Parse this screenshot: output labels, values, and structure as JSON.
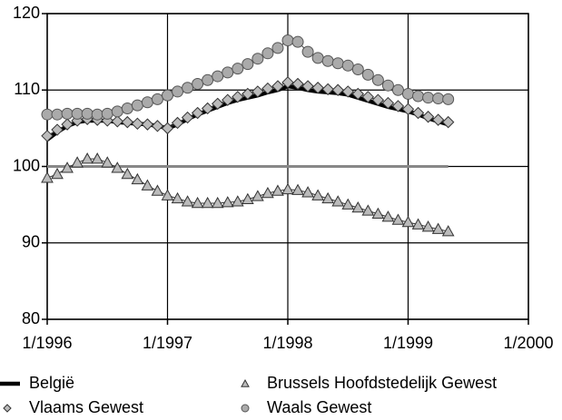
{
  "chart_data": {
    "type": "line",
    "x": [
      "1996-01",
      "1996-02",
      "1996-03",
      "1996-04",
      "1996-05",
      "1996-06",
      "1996-07",
      "1996-08",
      "1996-09",
      "1996-10",
      "1996-11",
      "1996-12",
      "1997-01",
      "1997-02",
      "1997-03",
      "1997-04",
      "1997-05",
      "1997-06",
      "1997-07",
      "1997-08",
      "1997-09",
      "1997-10",
      "1997-11",
      "1997-12",
      "1998-01",
      "1998-02",
      "1998-03",
      "1998-04",
      "1998-05",
      "1998-06",
      "1998-07",
      "1998-08",
      "1998-09",
      "1998-10",
      "1998-11",
      "1998-12",
      "1999-01",
      "1999-02",
      "1999-03",
      "1999-04",
      "1999-05"
    ],
    "xlim": [
      "1996-01",
      "2000-01"
    ],
    "xticks": [
      {
        "value": "1996-01",
        "label": "1/1996"
      },
      {
        "value": "1997-01",
        "label": "1/1997"
      },
      {
        "value": "1998-01",
        "label": "1/1998"
      },
      {
        "value": "1999-01",
        "label": "1/1999"
      },
      {
        "value": "2000-01",
        "label": "1/2000"
      }
    ],
    "ylim": [
      80,
      120
    ],
    "yticks": [
      80,
      90,
      100,
      110,
      120
    ],
    "grid": true,
    "legend": "bottom",
    "reference_lines": [
      {
        "value": 100,
        "x": [
          "1996-01",
          "1999-05"
        ],
        "color": "#888888"
      }
    ],
    "series": [
      {
        "name": "België",
        "color": "#000000",
        "marker": "none",
        "values": [
          103.5,
          104.5,
          105.3,
          105.8,
          106,
          106,
          106,
          105.8,
          105.7,
          105.6,
          105.5,
          105.3,
          105,
          105.5,
          106.2,
          106.8,
          107.3,
          107.8,
          108.3,
          108.7,
          109,
          109.3,
          109.7,
          110,
          110.5,
          110.3,
          110,
          109.8,
          109.7,
          109.6,
          109.4,
          109,
          108.6,
          108.2,
          107.8,
          107.5,
          107.2,
          106.8,
          106.3,
          105.9,
          105.5
        ]
      },
      {
        "name": "Brussels Hoofdstedelijk Gewest",
        "color": "#bbbbbb",
        "marker": "triangle",
        "values": [
          98.5,
          99,
          99.8,
          100.5,
          101,
          101,
          100.5,
          99.8,
          99,
          98.3,
          97.5,
          96.8,
          96.2,
          95.8,
          95.4,
          95.2,
          95.2,
          95.2,
          95.3,
          95.4,
          95.7,
          96.1,
          96.5,
          96.8,
          97,
          96.9,
          96.6,
          96.2,
          95.8,
          95.4,
          95,
          94.6,
          94.2,
          93.8,
          93.4,
          93,
          92.7,
          92.4,
          92.1,
          91.8,
          91.5
        ]
      },
      {
        "name": "Vlaams Gewest",
        "color": "#bbbbbb",
        "marker": "diamond",
        "values": [
          104,
          104.8,
          105.5,
          106,
          106.2,
          106.1,
          106,
          105.9,
          105.8,
          105.6,
          105.5,
          105.3,
          105,
          105.7,
          106.4,
          107,
          107.6,
          108.2,
          108.7,
          109.1,
          109.5,
          109.8,
          110.2,
          110.5,
          111,
          110.8,
          110.5,
          110.3,
          110.1,
          110,
          109.8,
          109.5,
          109.1,
          108.7,
          108.3,
          107.9,
          107.5,
          107,
          106.5,
          106.1,
          105.8
        ]
      },
      {
        "name": "Waals Gewest",
        "color": "#aaaaaa",
        "marker": "circle",
        "values": [
          106.8,
          106.8,
          106.9,
          106.9,
          106.9,
          106.8,
          106.9,
          107.2,
          107.6,
          108,
          108.4,
          108.8,
          109.3,
          109.8,
          110.3,
          110.8,
          111.3,
          111.8,
          112.3,
          112.8,
          113.4,
          114.1,
          114.8,
          115.5,
          116.5,
          116.3,
          115,
          114.2,
          113.8,
          113.5,
          113.2,
          112.7,
          112,
          111.3,
          110.6,
          110,
          109.5,
          109.2,
          109,
          108.9,
          108.8
        ]
      }
    ]
  }
}
